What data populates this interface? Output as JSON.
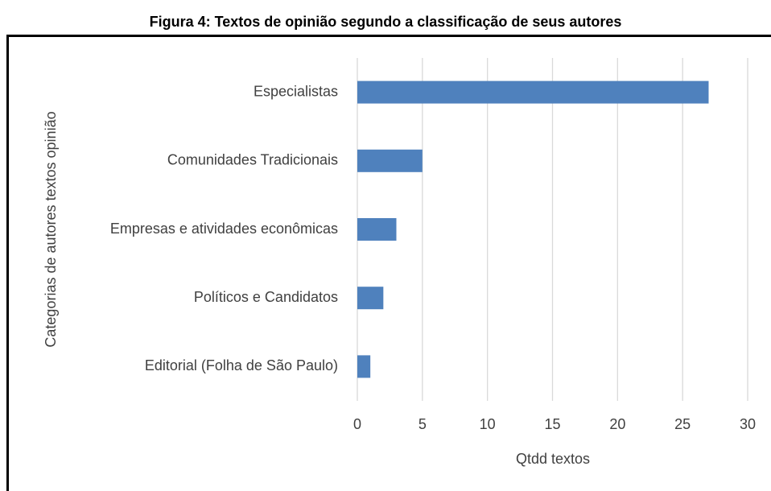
{
  "chart_data": {
    "type": "bar",
    "orientation": "horizontal",
    "title": "Figura 4: Textos de opinião segundo a classificação de seus autores",
    "xlabel": "Qtdd textos",
    "ylabel": "Categorias de autores textos opinião",
    "categories": [
      "Especialistas",
      "Comunidades Tradicionais",
      "Empresas e atividades econômicas",
      "Políticos e Candidatos",
      "Editorial (Folha de São Paulo)"
    ],
    "values": [
      27,
      5,
      3,
      2,
      1
    ],
    "color": "#4f81bd",
    "xlim": [
      0,
      30
    ],
    "xticks": [
      0,
      5,
      10,
      15,
      20,
      25,
      30
    ],
    "grid": true
  }
}
